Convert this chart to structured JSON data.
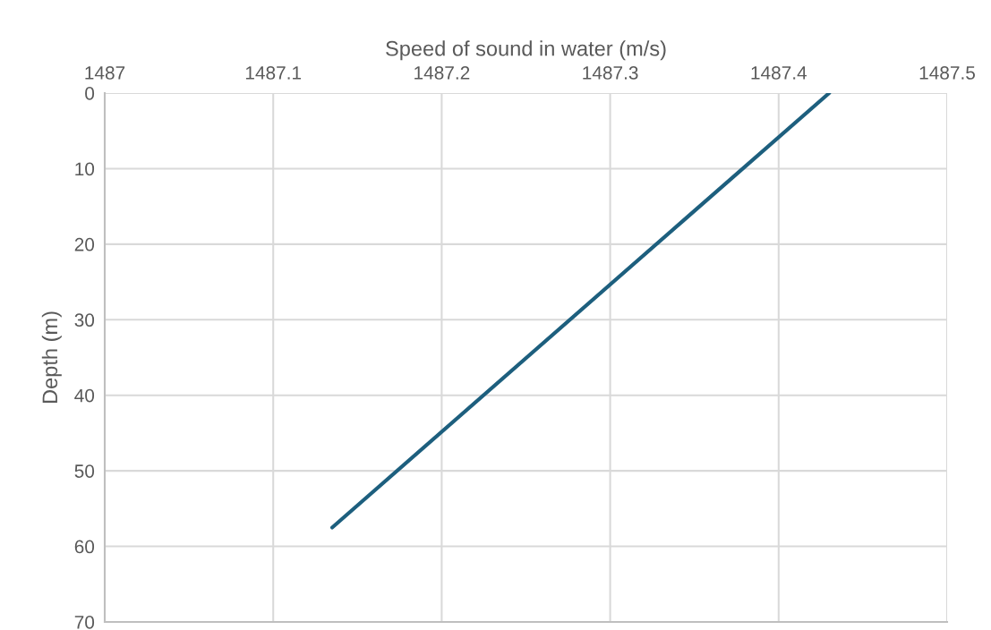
{
  "chart_data": {
    "type": "line",
    "xlabel": "Speed of sound in water (m/s)",
    "ylabel": "Depth (m)",
    "series": [
      {
        "color": "#1d5f7e",
        "x": [
          1487.43,
          1487.135
        ],
        "values": [
          0,
          57.5
        ]
      }
    ],
    "xlim": [
      1487,
      1487.5
    ],
    "xticks": [
      1487,
      1487.1,
      1487.2,
      1487.3,
      1487.4,
      1487.5
    ],
    "ylim": [
      70,
      0
    ],
    "yticks": [
      0,
      10,
      20,
      30,
      40,
      50,
      60,
      70
    ],
    "grid": true,
    "marker": "none",
    "line_style": "solid"
  }
}
